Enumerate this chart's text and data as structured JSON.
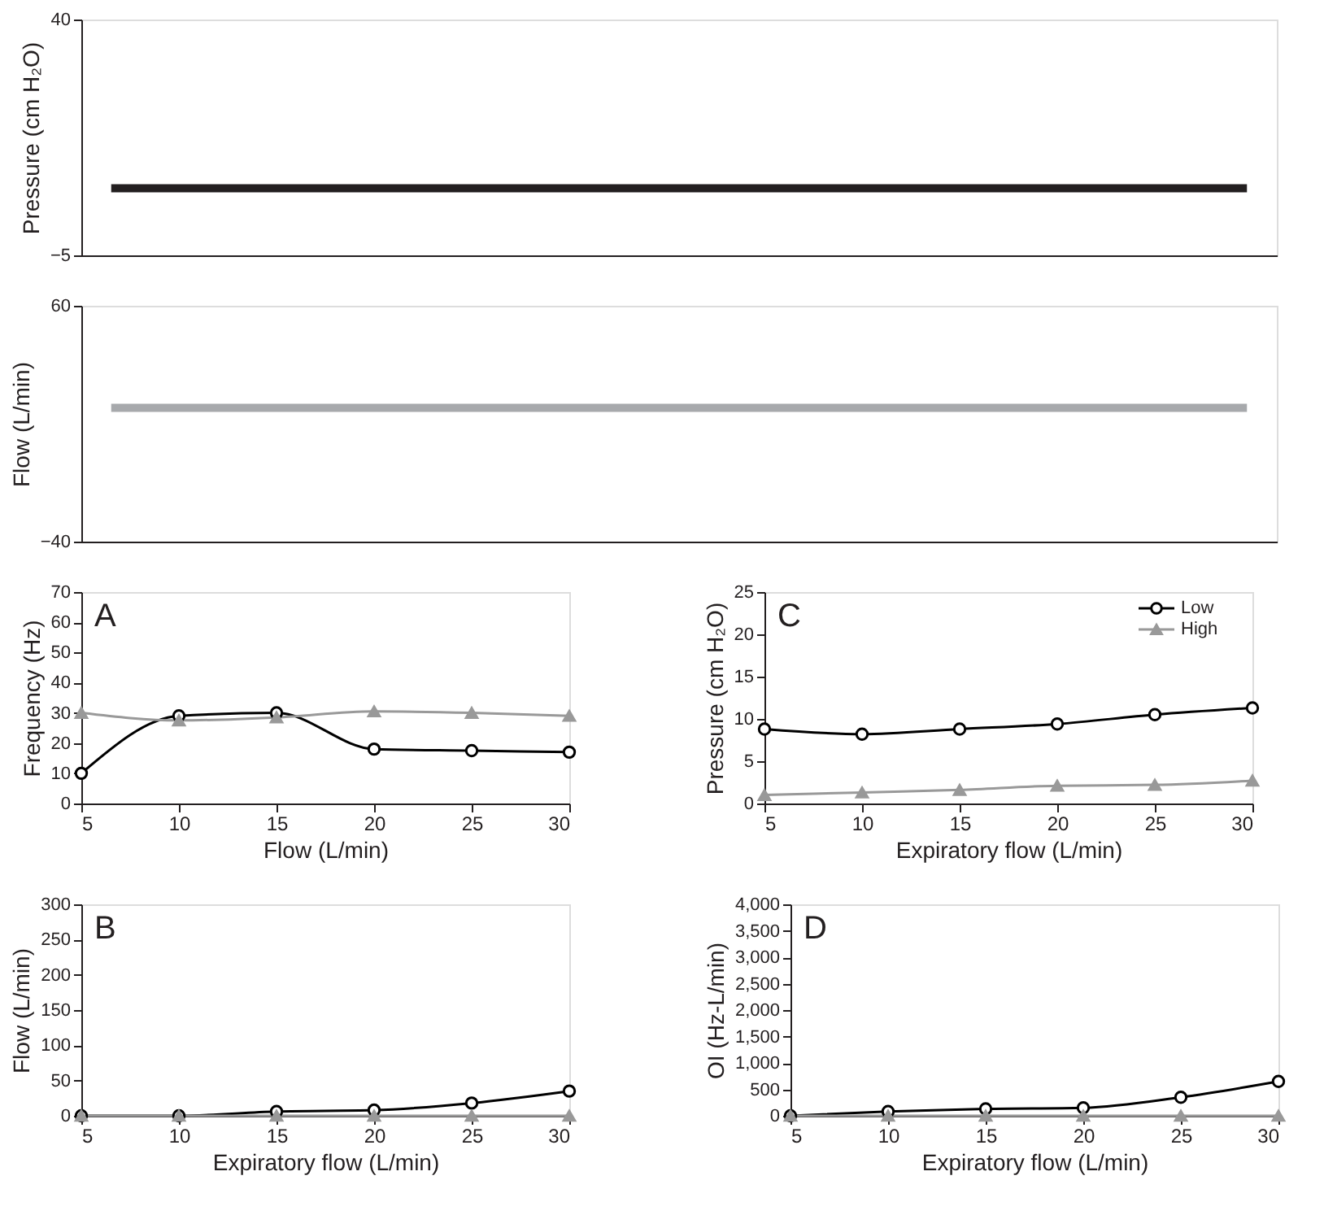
{
  "chart_data": [
    {
      "type": "line",
      "ylabel": "Pressure (cm H₂O)",
      "categories": [
        null,
        null,
        null,
        null,
        null,
        null,
        null,
        null,
        null,
        null,
        null,
        null,
        null,
        null,
        null,
        null,
        null,
        null,
        null,
        null
      ],
      "tick_labels": "y",
      "marker": "none",
      "ylim": [
        -5,
        40
      ],
      "yticks": [
        {
          "value": -5,
          "label": "−5"
        },
        40
      ],
      "grid": false,
      "legend": false,
      "series": [
        {
          "color": "#231f20",
          "values": [
            7.8,
            7.8,
            7.8,
            7.8,
            7.8,
            7.8,
            7.8,
            7.8,
            7.8,
            7.8,
            7.8,
            7.8,
            7.8,
            7.8,
            7.8,
            7.8,
            7.8,
            7.8,
            7.8,
            7.8
          ]
        }
      ]
    },
    {
      "type": "line",
      "ylabel": "Flow (L/min)",
      "categories": [
        null,
        null,
        null,
        null,
        null,
        null,
        null,
        null,
        null,
        null,
        null,
        null,
        null,
        null,
        null,
        null,
        null,
        null,
        null,
        null
      ],
      "tick_labels": "y",
      "marker": "none",
      "ylim": [
        -40,
        60
      ],
      "yticks": [
        {
          "value": -40,
          "label": "−40"
        },
        60
      ],
      "grid": false,
      "legend": false,
      "series": [
        {
          "color": "#a7a9ac",
          "values": [
            16.7,
            16.7,
            16.7,
            16.7,
            16.7,
            16.7,
            16.7,
            16.7,
            16.7,
            16.7,
            16.7,
            16.7,
            16.7,
            16.7,
            16.7,
            16.7,
            16.7,
            16.7,
            16.7,
            16.7
          ]
        }
      ]
    },
    {
      "type": "line",
      "xlabel": "Flow (L/min)",
      "ylabel": "Frequency (Hz)",
      "annotations": [
        "A"
      ],
      "x": [
        5,
        10,
        15,
        20,
        25,
        30
      ],
      "xlim": [
        5,
        30
      ],
      "xticks": [
        5,
        10,
        15,
        20,
        25,
        30
      ],
      "ylim": [
        0,
        70
      ],
      "yticks": [
        0,
        10,
        20,
        30,
        40,
        50,
        60,
        70
      ],
      "grid": false,
      "legend": false,
      "series": [
        {
          "color": "#000000",
          "marker": "circle",
          "values": [
            10,
            29,
            30,
            18,
            17.5,
            17
          ]
        },
        {
          "color": "#999999",
          "marker": "triangle",
          "values": [
            30,
            27.5,
            28.5,
            30.5,
            30,
            29
          ]
        }
      ]
    },
    {
      "type": "line",
      "xlabel": "Expiratory flow (L/min)",
      "ylabel": "Pressure (cm H₂O)",
      "annotations": [
        "C"
      ],
      "x": [
        5,
        10,
        15,
        20,
        25,
        30
      ],
      "xlim": [
        5,
        30
      ],
      "xticks": [
        5,
        10,
        15,
        20,
        25,
        30
      ],
      "ylim": [
        0,
        25
      ],
      "yticks": [
        0,
        5,
        10,
        15,
        20,
        25
      ],
      "grid": false,
      "legend": "top right",
      "series": [
        {
          "name": "Low",
          "color": "#000000",
          "marker": "circle",
          "values": [
            8.8,
            8.2,
            8.8,
            9.4,
            10.5,
            11.3
          ]
        },
        {
          "name": "High",
          "color": "#999999",
          "marker": "triangle",
          "values": [
            1,
            1.3,
            1.6,
            2.1,
            2.2,
            2.7
          ]
        }
      ]
    },
    {
      "type": "line",
      "xlabel": "Expiratory flow (L/min)",
      "ylabel": "Flow (L/min)",
      "annotations": [
        "B"
      ],
      "x": [
        5,
        10,
        15,
        20,
        25,
        30
      ],
      "xlim": [
        5,
        30
      ],
      "xticks": [
        5,
        10,
        15,
        20,
        25,
        30
      ],
      "ylim": [
        0,
        300
      ],
      "yticks": [
        0,
        50,
        100,
        150,
        200,
        250,
        300
      ],
      "grid": false,
      "legend": false,
      "series": [
        {
          "color": "#000000",
          "marker": "circle",
          "values": [
            0,
            0,
            6,
            8,
            18,
            35
          ]
        },
        {
          "color": "#999999",
          "marker": "triangle",
          "values": [
            0,
            0,
            0,
            0,
            0,
            0
          ]
        }
      ]
    },
    {
      "type": "line",
      "xlabel": "Expiratory flow (L/min)",
      "ylabel": "OI (Hz-L/min)",
      "annotations": [
        "D"
      ],
      "x": [
        5,
        10,
        15,
        20,
        25,
        30
      ],
      "xlim": [
        5,
        30
      ],
      "xticks": [
        5,
        10,
        15,
        20,
        25,
        30
      ],
      "ylim": [
        0,
        4000
      ],
      "yticks": [
        0,
        500,
        {
          "value": 1000,
          "label": "1,000"
        },
        {
          "value": 1500,
          "label": "1,500"
        },
        {
          "value": 2000,
          "label": "2,000"
        },
        {
          "value": 2500,
          "label": "2,500"
        },
        {
          "value": 3000,
          "label": "3,000"
        },
        {
          "value": 3500,
          "label": "3,500"
        },
        {
          "value": 4000,
          "label": "4,000"
        }
      ],
      "grid": false,
      "legend": false,
      "series": [
        {
          "color": "#000000",
          "marker": "circle",
          "values": [
            0,
            80,
            130,
            150,
            350,
            650
          ]
        },
        {
          "color": "#999999",
          "marker": "triangle",
          "values": [
            0,
            0,
            0,
            0,
            0,
            0
          ]
        }
      ]
    }
  ]
}
